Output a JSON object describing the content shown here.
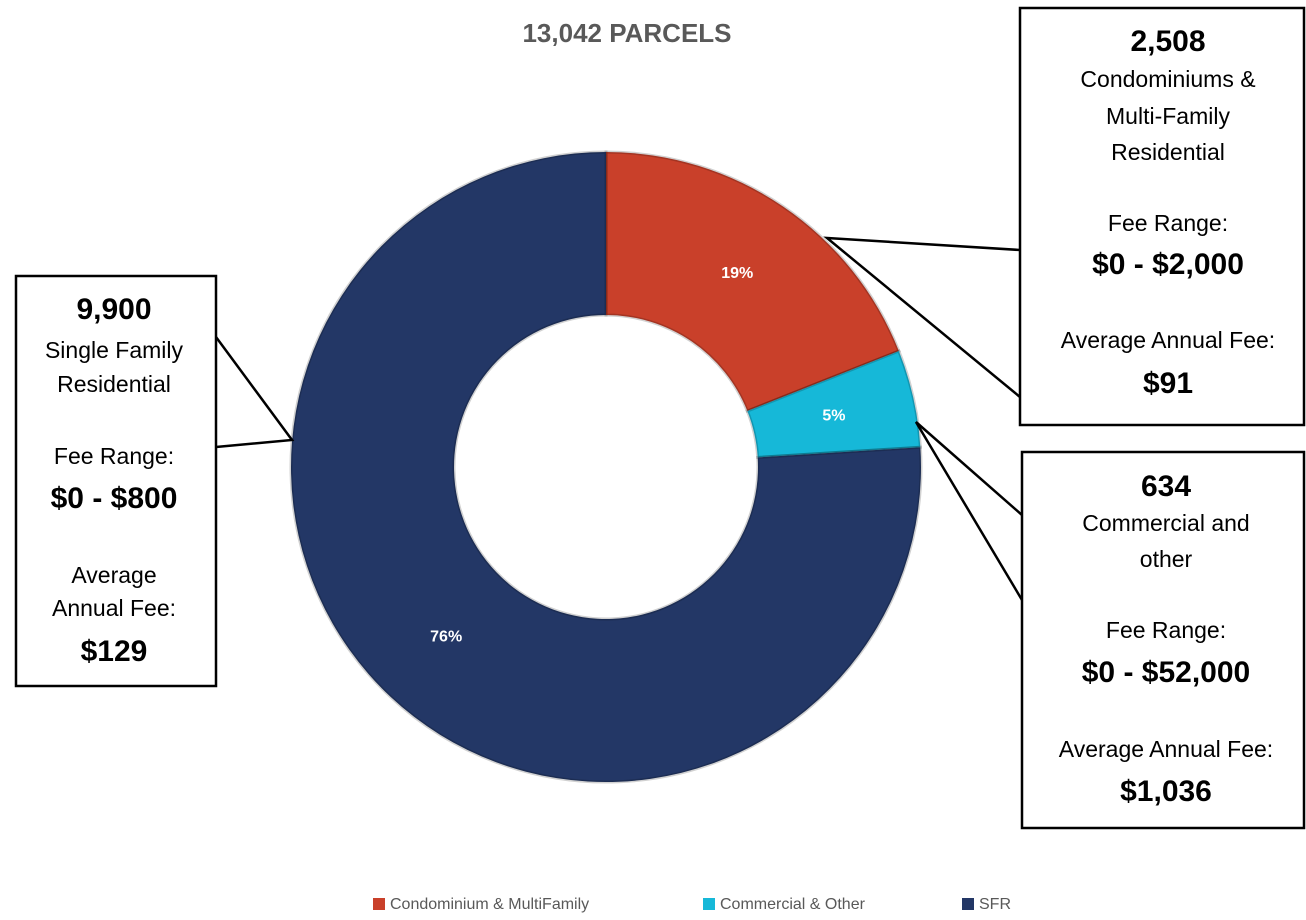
{
  "chart_data": {
    "type": "pie",
    "donut": true,
    "title": "13,042 PARCELS",
    "categories": [
      "Condominium & MultiFamily",
      "Commercial & Other",
      "SFR"
    ],
    "values": [
      19,
      5,
      76
    ],
    "value_labels": [
      "19%",
      "5%",
      "76%"
    ],
    "colors": [
      "#c9402a",
      "#16b8d8",
      "#233766"
    ],
    "legend": "bottom",
    "annotations": [
      {
        "count": "2,508",
        "lines": [
          "Condominiums &",
          "Multi-Family",
          "Residential"
        ],
        "fee_range_label": "Fee Range:",
        "fee_range": "$0 - $2,000",
        "average_label_lines": [
          "Average Annual Fee:"
        ],
        "average": "$91"
      },
      {
        "count": "634",
        "lines": [
          "Commercial and",
          "other"
        ],
        "fee_range_label": "Fee Range:",
        "fee_range": "$0 - $52,000",
        "average_label_lines": [
          "Average Annual Fee:"
        ],
        "average": "$1,036"
      },
      {
        "count": "9,900",
        "lines": [
          "Single Family",
          "Residential"
        ],
        "fee_range_label": "Fee Range:",
        "fee_range": "$0 - $800",
        "average_label_lines": [
          "Average",
          "Annual Fee:"
        ],
        "average": "$129"
      }
    ]
  }
}
